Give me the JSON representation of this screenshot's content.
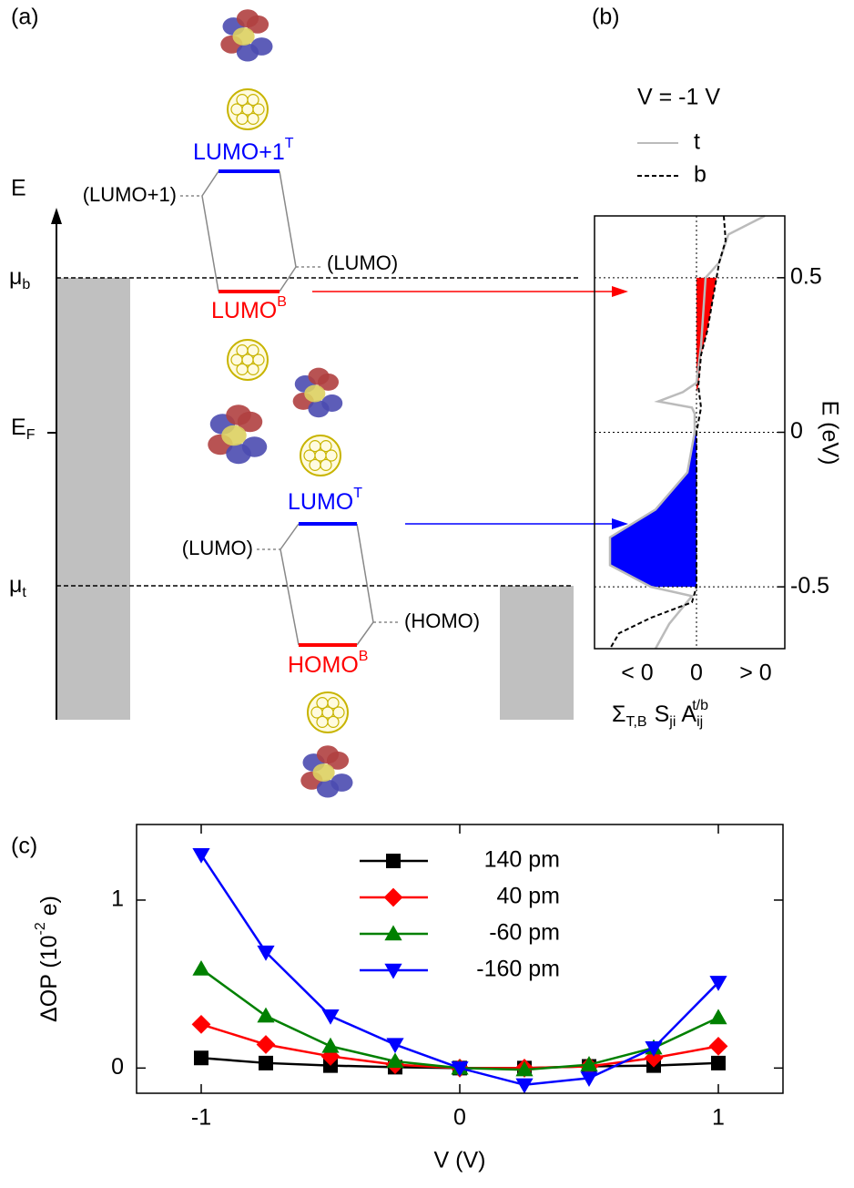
{
  "diagram": {
    "panel_label": "(a)",
    "energy_axis": "E",
    "mu_b": {
      "symbol": "μ",
      "sub": "b"
    },
    "fermi": {
      "symbol": "E",
      "sub": "F"
    },
    "mu_t": {
      "symbol": "μ",
      "sub": "t"
    },
    "upper": {
      "top_level": {
        "name": "LUMO+1",
        "sup": "T"
      },
      "bottom_level": {
        "name": "LUMO",
        "sup": "B"
      },
      "left_orbital": "(LUMO+1)",
      "right_orbital": "(LUMO)"
    },
    "lower": {
      "top_level": {
        "name": "LUMO",
        "sup": "T"
      },
      "bottom_level": {
        "name": "HOMO",
        "sup": "B"
      },
      "left_orbital": "(LUMO)",
      "right_orbital": "(HOMO)"
    }
  },
  "chart_data": [
    {
      "type": "line",
      "panel_label": "(b)",
      "legend_title": "V = -1 V",
      "ylabel": "E (eV)",
      "xlabel": {
        "sum": "Σ",
        "sum_sub": "T,B",
        "s": "S",
        "s_sub": "ji",
        "a": "A",
        "a_sub": "ij",
        "a_sup": "t/b"
      },
      "xlim": [
        -1.12,
        0.97
      ],
      "ylim": [
        -0.7,
        0.7
      ],
      "xticks": [
        {
          "value": -0.65,
          "label": "< 0"
        },
        0,
        {
          "value": 0.65,
          "label": "> 0"
        }
      ],
      "yticks": [
        -0.5,
        0,
        0.5
      ],
      "grid": true,
      "series": [
        {
          "name": "t",
          "color": "#bbbbbb",
          "dash": false,
          "x": [
            0.75,
            0.35,
            0.25,
            0.1,
            0.05,
            0.0,
            -0.15,
            -0.42,
            -0.05,
            -0.02,
            -0.02,
            -0.1,
            -0.45,
            -0.95,
            -0.95,
            -0.5,
            -0.05,
            -0.3,
            -0.45
          ],
          "y": [
            0.7,
            0.64,
            0.55,
            0.5,
            0.28,
            0.16,
            0.13,
            0.1,
            0.08,
            0.06,
            0.0,
            -0.13,
            -0.25,
            -0.34,
            -0.43,
            -0.5,
            -0.53,
            -0.62,
            -0.7
          ]
        },
        {
          "name": "b",
          "color": "#000000",
          "dash": true,
          "x": [
            0.3,
            0.32,
            0.25,
            0.22,
            0.12,
            0.05,
            0.02,
            0.05,
            0.0,
            0.0,
            -0.05,
            -0.5,
            -0.85,
            -0.95
          ],
          "y": [
            0.7,
            0.62,
            0.55,
            0.5,
            0.33,
            0.25,
            0.15,
            0.08,
            0.0,
            -0.5,
            -0.55,
            -0.6,
            -0.65,
            -0.7
          ]
        }
      ],
      "fills": [
        {
          "color": "#ff0000",
          "x": [
            0,
            0.22,
            0.12,
            0.05,
            0.02,
            0
          ],
          "y": [
            0.5,
            0.5,
            0.33,
            0.25,
            0.15,
            0.13
          ]
        },
        {
          "color": "#0000ff",
          "x": [
            0,
            -0.02,
            -0.1,
            -0.45,
            -0.95,
            -0.95,
            -0.5,
            0
          ],
          "y": [
            0,
            0,
            -0.13,
            -0.25,
            -0.34,
            -0.43,
            -0.5,
            -0.5
          ]
        }
      ]
    },
    {
      "type": "line",
      "panel_label": "(c)",
      "xlabel": "V (V)",
      "ylabel": {
        "text": "ΔOP (10",
        "sup": "-2",
        "tail": " e)"
      },
      "x": [
        -1,
        -0.75,
        -0.5,
        -0.25,
        0,
        0.25,
        0.5,
        0.75,
        1
      ],
      "xlim": [
        -1.25,
        1.25
      ],
      "ylim": [
        -0.15,
        1.45
      ],
      "xticks": [
        -1,
        0,
        1
      ],
      "yticks": [
        0,
        1
      ],
      "series": [
        {
          "name": "140 pm",
          "color": "#000000",
          "marker": "square",
          "values": [
            0.06,
            0.03,
            0.015,
            0.005,
            0,
            0,
            0.01,
            0.015,
            0.03
          ]
        },
        {
          "name": "40 pm",
          "color": "#ff0000",
          "marker": "diamond",
          "values": [
            0.26,
            0.14,
            0.07,
            0.02,
            0,
            0,
            0.01,
            0.06,
            0.13
          ]
        },
        {
          "name": "-60 pm",
          "color": "#008000",
          "marker": "triangle-up",
          "values": [
            0.59,
            0.31,
            0.13,
            0.04,
            0,
            -0.01,
            0.02,
            0.12,
            0.3
          ]
        },
        {
          "name": "-160 pm",
          "color": "#0000ff",
          "marker": "triangle-down",
          "values": [
            1.27,
            0.69,
            0.31,
            0.14,
            0,
            -0.1,
            -0.06,
            0.12,
            0.51
          ]
        }
      ]
    }
  ]
}
